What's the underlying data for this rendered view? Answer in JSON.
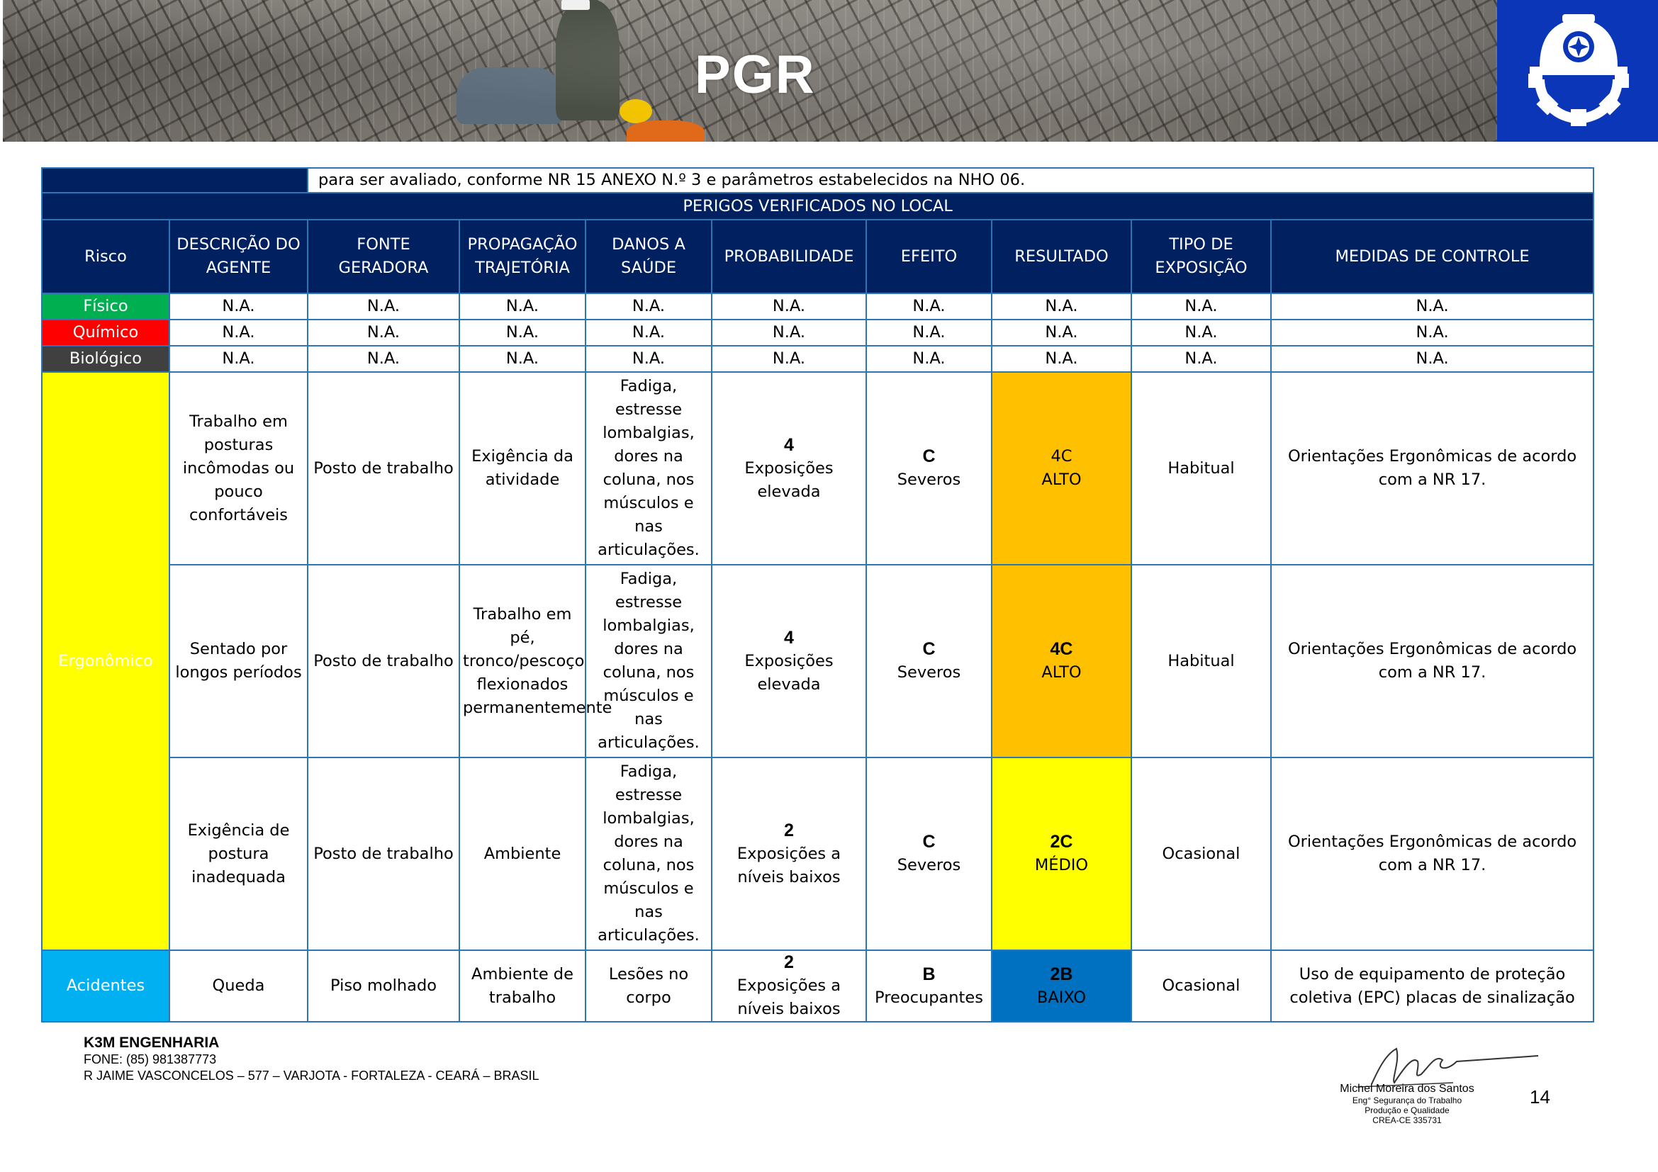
{
  "header": {
    "title": "PGR"
  },
  "table": {
    "top_note": "para ser avaliado, conforme NR 15 ANEXO N.º 3 e parâmetros estabelecidos na NHO 06.",
    "section_title": "PERIGOS VERIFICADOS NO LOCAL",
    "columns": [
      "Risco",
      "DESCRIÇÃO DO AGENTE",
      "FONTE GERADORA",
      "PROPAGAÇÃO TRAJETÓRIA",
      "DANOS A SAÚDE",
      "PROBABILIDADE",
      "EFEITO",
      "RESULTADO",
      "TIPO DE EXPOSIÇÃO",
      "MEDIDAS DE CONTROLE"
    ],
    "na_rows": [
      {
        "risco": "Físico",
        "risco_color": "#00b050",
        "cells": [
          "N.A.",
          "N.A.",
          "N.A.",
          "N.A.",
          "N.A.",
          "N.A.",
          "N.A.",
          "N.A.",
          "N.A."
        ]
      },
      {
        "risco": "Químico",
        "risco_color": "#ff0000",
        "cells": [
          "N.A.",
          "N.A.",
          "N.A.",
          "N.A.",
          "N.A.",
          "N.A.",
          "N.A.",
          "N.A.",
          "N.A."
        ]
      },
      {
        "risco": "Biológico",
        "risco_color": "#404040",
        "cells": [
          "N.A.",
          "N.A.",
          "N.A.",
          "N.A.",
          "N.A.",
          "N.A.",
          "N.A.",
          "N.A.",
          "N.A."
        ]
      }
    ],
    "ergonomico": {
      "risco": "Ergonômico",
      "risco_color": "#ffff00",
      "rows": [
        {
          "descricao": "Trabalho em posturas incômodas ou pouco confortáveis",
          "fonte": "Posto de trabalho",
          "propagacao": "Exigência da atividade",
          "danos": "Fadiga, estresse lombalgias, dores na coluna, nos músculos e nas articulações.",
          "prob_num": "4",
          "prob_text": "Exposições elevada",
          "efeito_letter": "C",
          "efeito_text": "Severos",
          "resultado_code": "4C",
          "resultado_text": "ALTO",
          "resultado_color": "#ffc000",
          "exposicao": "Habitual",
          "medidas": "Orientações Ergonômicas de acordo com a NR 17."
        },
        {
          "descricao": "Sentado por longos períodos",
          "fonte": "Posto de trabalho",
          "propagacao": "Trabalho em pé, tronco/pescoço flexionados permanentemente",
          "danos": "Fadiga, estresse lombalgias, dores na coluna, nos músculos e nas articulações.",
          "prob_num": "4",
          "prob_text": "Exposições elevada",
          "efeito_letter": "C",
          "efeito_text": "Severos",
          "resultado_code": "4C",
          "resultado_text": "ALTO",
          "resultado_color": "#ffc000",
          "exposicao": "Habitual",
          "medidas": "Orientações Ergonômicas de acordo com a NR 17."
        },
        {
          "descricao": "Exigência de postura inadequada",
          "fonte": "Posto de trabalho",
          "propagacao": "Ambiente",
          "danos": "Fadiga, estresse lombalgias, dores na coluna, nos músculos e nas articulações.",
          "prob_num": "2",
          "prob_text": "Exposições a níveis baixos",
          "efeito_letter": "C",
          "efeito_text": "Severos",
          "resultado_code": "2C",
          "resultado_text": "MÉDIO",
          "resultado_color": "#ffff00",
          "exposicao": "Ocasional",
          "medidas": "Orientações Ergonômicas de acordo com a NR 17."
        }
      ]
    },
    "acidentes": {
      "risco": "Acidentes",
      "risco_color": "#00b0f0",
      "descricao": "Queda",
      "fonte": "Piso molhado",
      "propagacao": "Ambiente de trabalho",
      "danos": "Lesões no corpo",
      "prob_num": "2",
      "prob_text": "Exposições a níveis baixos",
      "efeito_letter": "B",
      "efeito_text": "Preocupantes",
      "resultado_code": "2B",
      "resultado_text": "BAIXO",
      "resultado_color": "#0070c0",
      "exposicao": "Ocasional",
      "medidas": "Uso de equipamento de proteção coletiva (EPC) placas de sinalização"
    }
  },
  "footer": {
    "company": "K3M ENGENHARIA",
    "phone": "FONE: (85) 981387773",
    "address": "R JAIME VASCONCELOS – 577 – VARJOTA - FORTALEZA - CEARÁ – BRASIL",
    "signature_name": "Michel Moreira dos Santos",
    "signature_role1": "Eng° Segurança do Trabalho",
    "signature_role2": "Produção e Qualidade",
    "signature_crea": "CREA-CE 335731",
    "page_number": "14"
  }
}
